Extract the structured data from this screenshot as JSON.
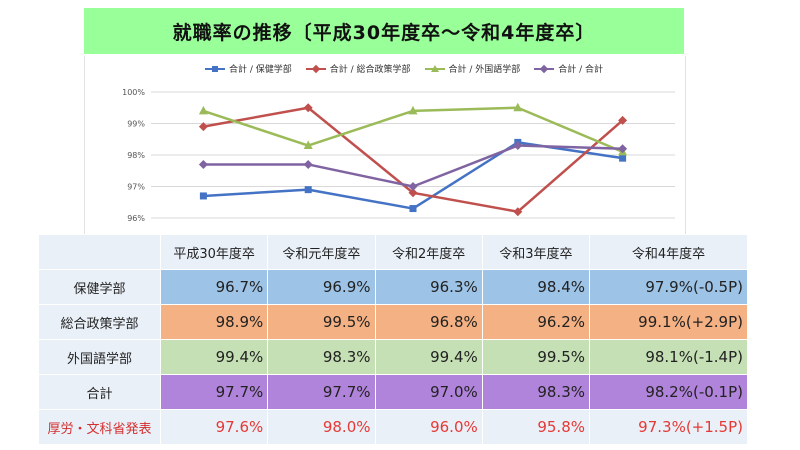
{
  "title": "就職率の推移〔平成30年度卒～令和4年度卒〕",
  "chart_data": {
    "type": "line",
    "categories": [
      "平成30年度卒",
      "令和元年度卒",
      "令和2年度卒",
      "令和3年度卒",
      "令和4年度卒"
    ],
    "series": [
      {
        "name": "合計 / 保健学部",
        "values": [
          96.7,
          96.9,
          96.3,
          98.4,
          97.9
        ],
        "color": "#4472c4",
        "marker": "square"
      },
      {
        "name": "合計 / 総合政策学部",
        "values": [
          98.9,
          99.5,
          96.8,
          96.2,
          99.1
        ],
        "color": "#c0504d",
        "marker": "diamond"
      },
      {
        "name": "合計 / 外国語学部",
        "values": [
          99.4,
          98.3,
          99.4,
          99.5,
          98.1
        ],
        "color": "#9bbb59",
        "marker": "triangle"
      },
      {
        "name": "合計 / 合計",
        "values": [
          97.7,
          97.7,
          97.0,
          98.3,
          98.2
        ],
        "color": "#8064a2",
        "marker": "diamond"
      }
    ],
    "ylim": [
      96,
      100
    ],
    "yticks": [
      "96%",
      "97%",
      "98%",
      "99%",
      "100%"
    ],
    "grid": true,
    "legend": "top"
  },
  "table": {
    "header": [
      "",
      "平成30年度卒",
      "令和元年度卒",
      "令和2年度卒",
      "令和3年度卒",
      "令和4年度卒"
    ],
    "rows": [
      {
        "label": "保健学部",
        "values": [
          "96.7%",
          "96.9%",
          "96.3%",
          "98.4%",
          "97.9%(-0.5P)"
        ]
      },
      {
        "label": "総合政策学部",
        "values": [
          "98.9%",
          "99.5%",
          "96.8%",
          "96.2%",
          "99.1%(+2.9P)"
        ]
      },
      {
        "label": "外国語学部",
        "values": [
          "99.4%",
          "98.3%",
          "99.4%",
          "99.5%",
          "98.1%(-1.4P)"
        ]
      },
      {
        "label": "合計",
        "values": [
          "97.7%",
          "97.7%",
          "97.0%",
          "98.3%",
          "98.2%(-0.1P)"
        ]
      },
      {
        "label": "厚労・文科省発表",
        "values": [
          "97.6%",
          "98.0%",
          "96.0%",
          "95.8%",
          "97.3%(+1.5P)"
        ]
      }
    ]
  }
}
